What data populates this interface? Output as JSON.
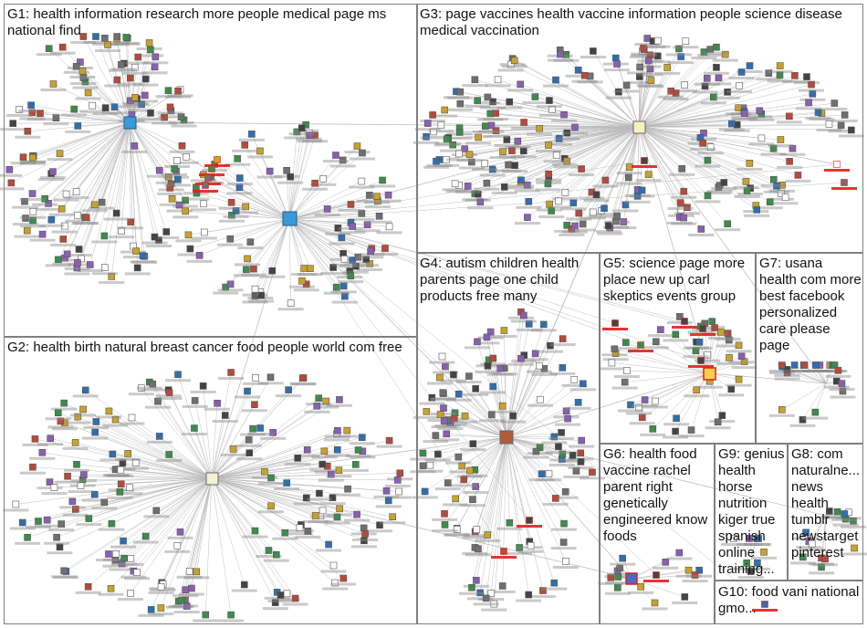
{
  "graph": {
    "background": "#ffffff",
    "edge_color": "#b9b9b9",
    "panel_border_color": "#7f7f7f",
    "label_color": "#111111",
    "highlight_color": "#e0201b",
    "hub_color": "#3a9ad9",
    "shadow_color": "#8a8a8a"
  },
  "groups": [
    {
      "id": "G1",
      "label": "G1: health information research more people medical page ms national find"
    },
    {
      "id": "G2",
      "label": "G2: health birth natural breast cancer food people world com free"
    },
    {
      "id": "G3",
      "label": "G3: page vaccines health vaccine information people science disease medical vaccination"
    },
    {
      "id": "G4",
      "label": "G4: autism children health parents page one child products free many"
    },
    {
      "id": "G5",
      "label": "G5: science page more place new up carl skeptics events group"
    },
    {
      "id": "G6",
      "label": "G6: health food vaccine rachel parent right genetically engineered know foods"
    },
    {
      "id": "G7",
      "label": "G7: usana health com more best facebook personalized care please page"
    },
    {
      "id": "G8",
      "label": "G8: com naturalne... news health tumblr newstarget pinterest"
    },
    {
      "id": "G9",
      "label": "G9: genius health horse nutrition kiger true spanish online training..."
    },
    {
      "id": "G10",
      "label": "G10: food vani national gmo..."
    }
  ]
}
